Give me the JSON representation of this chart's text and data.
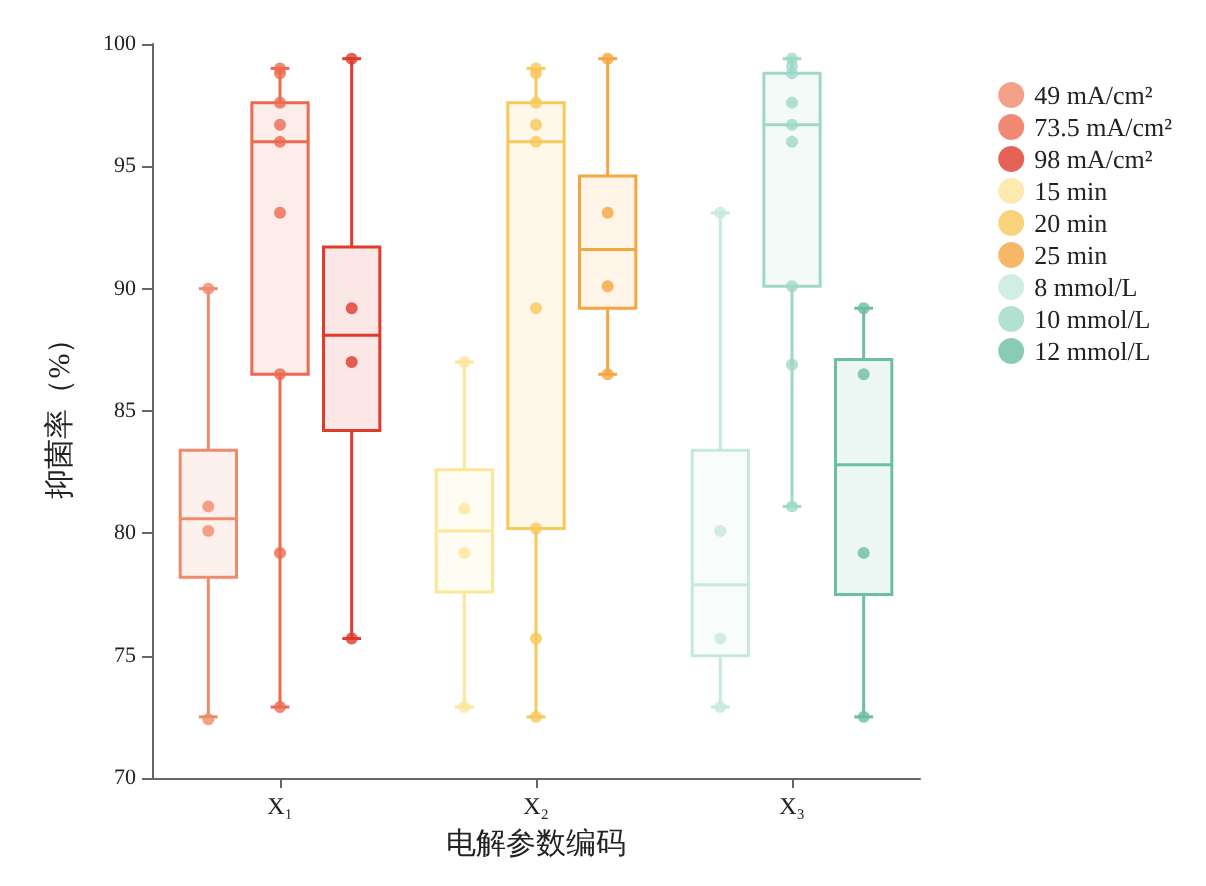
{
  "chart_data": {
    "type": "box",
    "xlabel": "电解参数编码",
    "ylabel": "抑菌率（%）",
    "categories": [
      "X₁",
      "X₂",
      "X₃"
    ],
    "ylim": [
      70,
      100
    ],
    "yticks": [
      70,
      75,
      80,
      85,
      90,
      95,
      100
    ],
    "grid": false,
    "legend": "top right",
    "marker": "circle",
    "series": [
      {
        "color": "#f08a6a",
        "boxes": [
          {
            "low": 72.5,
            "q1": 78.2,
            "median": 80.6,
            "q3": 83.4,
            "high": 90.0
          },
          null,
          null
        ]
      },
      {
        "color": "#ec6a50",
        "boxes": [
          {
            "low": 72.9,
            "q1": 86.5,
            "median": 96.0,
            "q3": 97.6,
            "high": 99.0
          },
          null,
          null
        ]
      },
      {
        "color": "#e03a2c",
        "boxes": [
          {
            "low": 75.7,
            "q1": 84.2,
            "median": 88.1,
            "q3": 91.7,
            "high": 99.4
          },
          null,
          null
        ]
      },
      {
        "color": "#fde59a",
        "boxes": [
          null,
          {
            "low": 72.9,
            "q1": 77.6,
            "median": 80.1,
            "q3": 82.6,
            "high": 87.0
          },
          null
        ]
      },
      {
        "color": "#f7c85a",
        "boxes": [
          null,
          {
            "low": 72.5,
            "q1": 80.2,
            "median": 96.0,
            "q3": 97.6,
            "high": 99.0
          },
          null
        ]
      },
      {
        "color": "#f4a640",
        "boxes": [
          null,
          {
            "low": 86.5,
            "q1": 89.2,
            "median": 91.6,
            "q3": 94.6,
            "high": 99.4
          },
          null
        ]
      },
      {
        "color": "#c5e8e0",
        "boxes": [
          null,
          null,
          {
            "low": 72.9,
            "q1": 75.0,
            "median": 77.9,
            "q3": 83.4,
            "high": 93.1
          }
        ]
      },
      {
        "color": "#9fd8c8",
        "boxes": [
          null,
          null,
          {
            "low": 81.1,
            "q1": 90.1,
            "median": 96.7,
            "q3": 98.8,
            "high": 99.4
          }
        ]
      },
      {
        "color": "#6cbfa0",
        "boxes": [
          null,
          null,
          {
            "low": 72.5,
            "q1": 77.5,
            "median": 82.8,
            "q3": 87.1,
            "high": 89.2
          }
        ]
      },
      {
        "type": "scatter",
        "name": "49 mA/cm²",
        "color": "#f08a6a",
        "x": [
          "X₁",
          "X₁",
          "X₁",
          "X₁"
        ],
        "values": [
          90.0,
          81.1,
          80.1,
          72.4
        ]
      },
      {
        "type": "scatter",
        "name": "73.5 mA/cm²",
        "color": "#ec6a50",
        "x": [
          "X₁",
          "X₁",
          "X₁",
          "X₁",
          "X₁",
          "X₁",
          "X₁",
          "X₁",
          "X₁"
        ],
        "values": [
          98.8,
          99.0,
          97.6,
          96.7,
          96.0,
          93.1,
          86.5,
          79.2,
          72.9
        ]
      },
      {
        "type": "scatter",
        "name": "98 mA/cm²",
        "color": "#e03a2c",
        "x": [
          "X₁",
          "X₁",
          "X₁",
          "X₁"
        ],
        "values": [
          99.4,
          89.2,
          87.0,
          75.7
        ]
      },
      {
        "type": "scatter",
        "name": "15 min",
        "color": "#fde59a",
        "x": [
          "X₂",
          "X₂",
          "X₂",
          "X₂"
        ],
        "values": [
          87.0,
          81.0,
          79.2,
          72.9
        ]
      },
      {
        "type": "scatter",
        "name": "20 min",
        "color": "#f7c85a",
        "x": [
          "X₂",
          "X₂",
          "X₂",
          "X₂",
          "X₂",
          "X₂",
          "X₂",
          "X₂",
          "X₂"
        ],
        "values": [
          98.8,
          99.0,
          97.6,
          96.7,
          96.0,
          89.2,
          80.2,
          75.7,
          72.5
        ]
      },
      {
        "type": "scatter",
        "name": "25 min",
        "color": "#f4a640",
        "x": [
          "X₂",
          "X₂",
          "X₂",
          "X₂"
        ],
        "values": [
          99.4,
          93.1,
          90.1,
          86.5
        ]
      },
      {
        "type": "scatter",
        "name": "8 mmol/L",
        "color": "#c5e8e0",
        "x": [
          "X₃",
          "X₃",
          "X₃",
          "X₃"
        ],
        "values": [
          93.1,
          80.1,
          75.7,
          72.9
        ]
      },
      {
        "type": "scatter",
        "name": "10 mmol/L",
        "color": "#9fd8c8",
        "x": [
          "X₃",
          "X₃",
          "X₃",
          "X₃",
          "X₃",
          "X₃",
          "X₃",
          "X₃",
          "X₃"
        ],
        "values": [
          99.4,
          99.1,
          98.8,
          97.6,
          96.7,
          96.0,
          90.1,
          86.9,
          81.1
        ]
      },
      {
        "type": "scatter",
        "name": "12 mmol/L",
        "color": "#6cbfa0",
        "x": [
          "X₃",
          "X₃",
          "X₃",
          "X₃"
        ],
        "values": [
          89.2,
          86.5,
          79.2,
          72.5
        ]
      }
    ]
  }
}
